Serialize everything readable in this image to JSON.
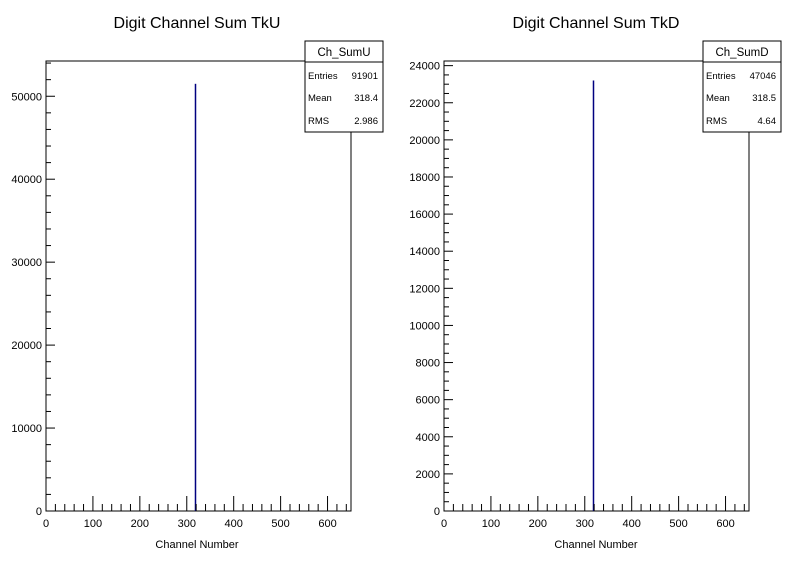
{
  "chart_data": [
    {
      "type": "bar",
      "title": "Digit Channel Sum TkU",
      "xlabel": "Channel Number",
      "ylabel": "",
      "xlim": [
        0,
        650
      ],
      "ylim": [
        0,
        54250
      ],
      "x_ticks": [
        0,
        100,
        200,
        300,
        400,
        500,
        600
      ],
      "y_ticks": [
        0,
        10000,
        20000,
        30000,
        40000,
        50000
      ],
      "x_tick_labels": [
        "0",
        "100",
        "200",
        "300",
        "400",
        "500",
        "600"
      ],
      "y_tick_labels": [
        "0",
        "10000",
        "20000",
        "30000",
        "40000",
        "50000"
      ],
      "series": [
        {
          "x": [
            318
          ],
          "values": [
            51500
          ],
          "bin_width": 2,
          "color": "#000080"
        }
      ],
      "stats_box": {
        "name": "Ch_SumU",
        "rows": [
          {
            "label": "Entries",
            "value": "91901"
          },
          {
            "label": "Mean",
            "value": "318.4"
          },
          {
            "label": "RMS",
            "value": "2.986"
          }
        ]
      }
    },
    {
      "type": "bar",
      "title": "Digit Channel Sum TkD",
      "xlabel": "Channel Number",
      "ylabel": "",
      "xlim": [
        0,
        650
      ],
      "ylim": [
        0,
        24250
      ],
      "x_ticks": [
        0,
        100,
        200,
        300,
        400,
        500,
        600
      ],
      "y_ticks": [
        0,
        2000,
        4000,
        6000,
        8000,
        10000,
        12000,
        14000,
        16000,
        18000,
        20000,
        22000,
        24000
      ],
      "x_tick_labels": [
        "0",
        "100",
        "200",
        "300",
        "400",
        "500",
        "600"
      ],
      "y_tick_labels": [
        "0",
        "2000",
        "4000",
        "6000",
        "8000",
        "10000",
        "12000",
        "14000",
        "16000",
        "18000",
        "20000",
        "22000",
        "24000"
      ],
      "series": [
        {
          "x": [
            318
          ],
          "values": [
            23200
          ],
          "bin_width": 2,
          "color": "#000080"
        }
      ],
      "stats_box": {
        "name": "Ch_SumD",
        "rows": [
          {
            "label": "Entries",
            "value": "47046"
          },
          {
            "label": "Mean",
            "value": "318.5"
          },
          {
            "label": "RMS",
            "value": "4.64"
          }
        ]
      }
    }
  ]
}
